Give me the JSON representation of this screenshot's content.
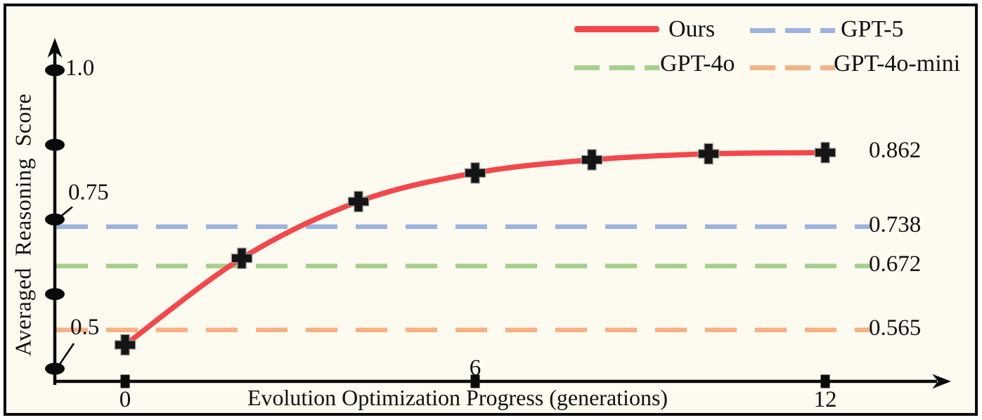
{
  "chart_data": {
    "type": "line",
    "title": "",
    "xlabel": "Evolution Optimization Progress (generations)",
    "ylabel": "Averaged Reasoning Score",
    "x": [
      0,
      2,
      4,
      6,
      8,
      10,
      12
    ],
    "series": [
      {
        "name": "Ours",
        "values": [
          0.54,
          0.685,
          0.78,
          0.828,
          0.85,
          0.86,
          0.862
        ],
        "color": "#f2484b",
        "style": "solid",
        "marker": "plus-cross",
        "end_label": "0.862"
      }
    ],
    "baselines": [
      {
        "name": "GPT-5",
        "value": 0.738,
        "label": "0.738",
        "color": "#9cb2df",
        "style": "dashed"
      },
      {
        "name": "GPT-4o",
        "value": 0.672,
        "label": "0.672",
        "color": "#a6cf8d",
        "style": "dashed"
      },
      {
        "name": "GPT-4o-mini",
        "value": 0.565,
        "label": "0.565",
        "color": "#f5b183",
        "style": "dashed"
      }
    ],
    "x_ticks": [
      {
        "value": 0,
        "label": "0",
        "label_side": "below"
      },
      {
        "value": 6,
        "label": "6",
        "label_side": "above"
      },
      {
        "value": 12,
        "label": "12",
        "label_side": "below"
      }
    ],
    "y_ticks": [
      {
        "value": 1.0,
        "label": "1.0",
        "label_style": "plain"
      },
      {
        "value": 0.875,
        "label": "",
        "label_style": "none"
      },
      {
        "value": 0.75,
        "label": "0.75",
        "label_style": "leader"
      },
      {
        "value": 0.625,
        "label": "",
        "label_style": "none"
      },
      {
        "value": 0.5,
        "label": "0.5",
        "label_style": "leader"
      }
    ],
    "xlim": [
      0,
      12
    ],
    "ylim": [
      0.45,
      1.05
    ],
    "grid": false,
    "legend_position": "top-right",
    "legend": [
      {
        "label": "Ours",
        "color": "#f2484b",
        "dash": false
      },
      {
        "label": "GPT-5",
        "color": "#9cb2df",
        "dash": true
      },
      {
        "label": "GPT-4o",
        "color": "#a6cf8d",
        "dash": true
      },
      {
        "label": "GPT-4o-mini",
        "color": "#f5b183",
        "dash": true
      }
    ]
  },
  "colors": {
    "background": "#fdfaf0",
    "frame_border": "#0a0a0a",
    "axis": "#0a0a0a",
    "text": "#111111",
    "marker": "#151515",
    "marker_halo": "#9a9a9a",
    "ours_red": "#f2484b",
    "gpt5_blue": "#9cb2df",
    "gpt4o_green": "#a6cf8d",
    "gpt4o_mini_orange": "#f5b183"
  }
}
